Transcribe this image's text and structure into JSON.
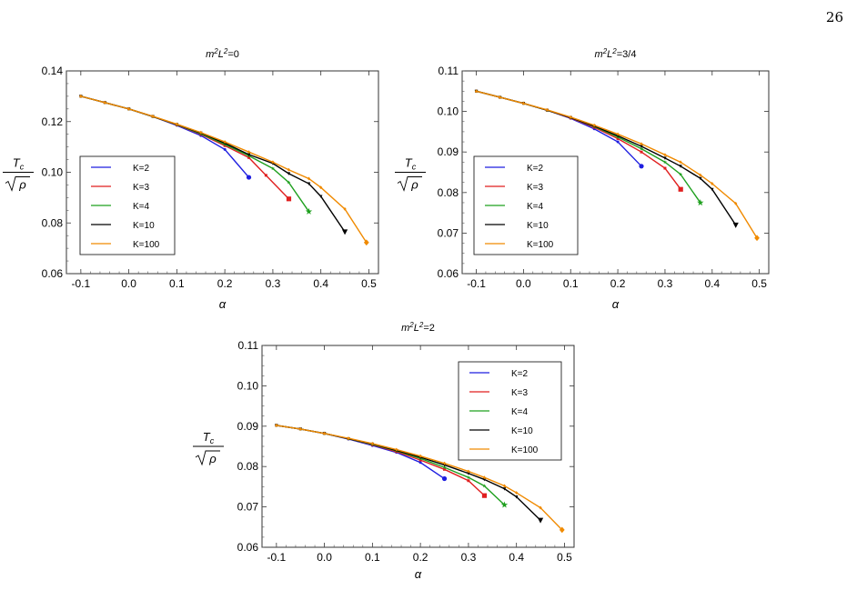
{
  "page": {
    "number": "26"
  },
  "chart_data": [
    {
      "type": "line",
      "title": "m²L²=0",
      "title_parts": {
        "base1": "m",
        "sup1": "2",
        "base2": "L",
        "sup2": "2",
        "rest": "=0"
      },
      "xlabel": "α",
      "ylabel": {
        "top": "T",
        "top_sub": "c",
        "bottom": "ρ"
      },
      "xlim": [
        -0.13,
        0.52
      ],
      "ylim": [
        0.06,
        0.14
      ],
      "xticks": [
        -0.1,
        0.0,
        0.1,
        0.2,
        0.3,
        0.4,
        0.5
      ],
      "xtick_labels": [
        "-0.1",
        "0.0",
        "0.1",
        "0.2",
        "0.3",
        "0.4",
        "0.5"
      ],
      "yticks": [
        0.06,
        0.08,
        0.1,
        0.12,
        0.14
      ],
      "ytick_labels": [
        "0.06",
        "0.08",
        "0.10",
        "0.12",
        "0.14"
      ],
      "legend_position": "middle-left",
      "series": [
        {
          "name": "K=2",
          "color": "#1f1fe0",
          "marker": "circle",
          "x": [
            -0.1,
            -0.05,
            0.0,
            0.05,
            0.1,
            0.15,
            0.2,
            0.25
          ],
          "y": [
            0.13,
            0.1275,
            0.125,
            0.122,
            0.1185,
            0.1145,
            0.109,
            0.098
          ]
        },
        {
          "name": "K=3",
          "color": "#e01f1f",
          "marker": "square",
          "x": [
            -0.1,
            -0.05,
            0.0,
            0.05,
            0.1,
            0.15,
            0.2,
            0.25,
            0.2857,
            0.3333
          ],
          "y": [
            0.13,
            0.1275,
            0.125,
            0.122,
            0.1187,
            0.115,
            0.1105,
            0.1058,
            0.0988,
            0.0895
          ]
        },
        {
          "name": "K=4",
          "color": "#1fa01f",
          "marker": "star",
          "x": [
            -0.1,
            -0.05,
            0.0,
            0.05,
            0.1,
            0.15,
            0.2,
            0.25,
            0.3,
            0.333,
            0.375
          ],
          "y": [
            0.13,
            0.1275,
            0.125,
            0.122,
            0.1188,
            0.1152,
            0.111,
            0.1065,
            0.1015,
            0.096,
            0.0845
          ]
        },
        {
          "name": "K=10",
          "color": "#000000",
          "marker": "triangle-down",
          "x": [
            -0.1,
            -0.05,
            0.0,
            0.05,
            0.1,
            0.15,
            0.2,
            0.25,
            0.3,
            0.333,
            0.375,
            0.4,
            0.45
          ],
          "y": [
            0.13,
            0.1275,
            0.125,
            0.122,
            0.1189,
            0.1155,
            0.1115,
            0.107,
            0.1035,
            0.0995,
            0.0955,
            0.0905,
            0.0765
          ]
        },
        {
          "name": "K=100",
          "color": "#f08a00",
          "marker": "diamond",
          "x": [
            -0.1,
            -0.05,
            0.0,
            0.05,
            0.1,
            0.15,
            0.2,
            0.25,
            0.3,
            0.333,
            0.375,
            0.4,
            0.45,
            0.495
          ],
          "y": [
            0.13,
            0.1275,
            0.125,
            0.1221,
            0.119,
            0.1157,
            0.112,
            0.108,
            0.104,
            0.101,
            0.0975,
            0.094,
            0.0855,
            0.0723
          ]
        }
      ]
    },
    {
      "type": "line",
      "title": "m²L²=3/4",
      "title_parts": {
        "base1": "m",
        "sup1": "2",
        "base2": "L",
        "sup2": "2",
        "rest": "=3/4"
      },
      "xlabel": "α",
      "ylabel": {
        "top": "T",
        "top_sub": "c",
        "bottom": "ρ"
      },
      "xlim": [
        -0.13,
        0.52
      ],
      "ylim": [
        0.06,
        0.11
      ],
      "xticks": [
        -0.1,
        0.0,
        0.1,
        0.2,
        0.3,
        0.4,
        0.5
      ],
      "xtick_labels": [
        "-0.1",
        "0.0",
        "0.1",
        "0.2",
        "0.3",
        "0.4",
        "0.5"
      ],
      "yticks": [
        0.06,
        0.07,
        0.08,
        0.09,
        0.1,
        0.11
      ],
      "ytick_labels": [
        "0.06",
        "0.07",
        "0.08",
        "0.09",
        "0.10",
        "0.11"
      ],
      "legend_position": "middle-left",
      "series": [
        {
          "name": "K=2",
          "color": "#1f1fe0",
          "marker": "circle",
          "x": [
            -0.1,
            -0.05,
            0.0,
            0.05,
            0.1,
            0.15,
            0.2,
            0.25
          ],
          "y": [
            0.105,
            0.1035,
            0.102,
            0.1003,
            0.0983,
            0.0957,
            0.0925,
            0.0865
          ]
        },
        {
          "name": "K=3",
          "color": "#e01f1f",
          "marker": "square",
          "x": [
            -0.1,
            -0.05,
            0.0,
            0.05,
            0.1,
            0.15,
            0.2,
            0.25,
            0.3,
            0.3333
          ],
          "y": [
            0.105,
            0.1035,
            0.102,
            0.1003,
            0.0984,
            0.0961,
            0.0933,
            0.09,
            0.086,
            0.0808
          ]
        },
        {
          "name": "K=4",
          "color": "#1fa01f",
          "marker": "star",
          "x": [
            -0.1,
            -0.05,
            0.0,
            0.05,
            0.1,
            0.15,
            0.2,
            0.25,
            0.3,
            0.333,
            0.375
          ],
          "y": [
            0.105,
            0.1035,
            0.102,
            0.1003,
            0.0985,
            0.0963,
            0.0937,
            0.0908,
            0.0875,
            0.0845,
            0.0775
          ]
        },
        {
          "name": "K=10",
          "color": "#000000",
          "marker": "triangle-down",
          "x": [
            -0.1,
            -0.05,
            0.0,
            0.05,
            0.1,
            0.15,
            0.2,
            0.25,
            0.3,
            0.333,
            0.375,
            0.4,
            0.45
          ],
          "y": [
            0.105,
            0.1035,
            0.102,
            0.1003,
            0.0985,
            0.0964,
            0.094,
            0.0914,
            0.0885,
            0.0865,
            0.0835,
            0.0808,
            0.072
          ]
        },
        {
          "name": "K=100",
          "color": "#f08a00",
          "marker": "diamond",
          "x": [
            -0.1,
            -0.05,
            0.0,
            0.05,
            0.1,
            0.15,
            0.2,
            0.25,
            0.3,
            0.333,
            0.375,
            0.4,
            0.45,
            0.495
          ],
          "y": [
            0.105,
            0.1035,
            0.102,
            0.1004,
            0.0986,
            0.0966,
            0.0944,
            0.092,
            0.0893,
            0.0875,
            0.0843,
            0.0822,
            0.0773,
            0.0688
          ]
        }
      ]
    },
    {
      "type": "line",
      "title": "m²L²=2",
      "title_parts": {
        "base1": "m",
        "sup1": "2",
        "base2": "L",
        "sup2": "2",
        "rest": "=2"
      },
      "xlabel": "α",
      "ylabel": {
        "top": "T",
        "top_sub": "c",
        "bottom": "ρ"
      },
      "xlim": [
        -0.13,
        0.52
      ],
      "ylim": [
        0.06,
        0.11
      ],
      "xticks": [
        -0.1,
        0.0,
        0.1,
        0.2,
        0.3,
        0.4,
        0.5
      ],
      "xtick_labels": [
        "-0.1",
        "0.0",
        "0.1",
        "0.2",
        "0.3",
        "0.4",
        "0.5"
      ],
      "yticks": [
        0.06,
        0.07,
        0.08,
        0.09,
        0.1,
        0.11
      ],
      "ytick_labels": [
        "0.06",
        "0.07",
        "0.08",
        "0.09",
        "0.10",
        "0.11"
      ],
      "legend_position": "top-right",
      "series": [
        {
          "name": "K=2",
          "color": "#1f1fe0",
          "marker": "circle",
          "x": [
            -0.1,
            -0.05,
            0.0,
            0.05,
            0.1,
            0.15,
            0.2,
            0.25
          ],
          "y": [
            0.0902,
            0.0893,
            0.0882,
            0.0868,
            0.0852,
            0.0835,
            0.081,
            0.077
          ]
        },
        {
          "name": "K=3",
          "color": "#e01f1f",
          "marker": "square",
          "x": [
            -0.1,
            -0.05,
            0.0,
            0.05,
            0.1,
            0.15,
            0.2,
            0.25,
            0.3,
            0.3333
          ],
          "y": [
            0.0902,
            0.0893,
            0.0882,
            0.0869,
            0.0854,
            0.0837,
            0.0816,
            0.0793,
            0.0765,
            0.0728
          ]
        },
        {
          "name": "K=4",
          "color": "#1fa01f",
          "marker": "star",
          "x": [
            -0.1,
            -0.05,
            0.0,
            0.05,
            0.1,
            0.15,
            0.2,
            0.25,
            0.3,
            0.333,
            0.375
          ],
          "y": [
            0.0902,
            0.0893,
            0.0882,
            0.0869,
            0.0855,
            0.0839,
            0.082,
            0.0798,
            0.0773,
            0.0752,
            0.0705
          ]
        },
        {
          "name": "K=10",
          "color": "#000000",
          "marker": "triangle-down",
          "x": [
            -0.1,
            -0.05,
            0.0,
            0.05,
            0.1,
            0.15,
            0.2,
            0.25,
            0.3,
            0.333,
            0.375,
            0.4,
            0.45
          ],
          "y": [
            0.0902,
            0.0893,
            0.0882,
            0.0869,
            0.0856,
            0.084,
            0.0823,
            0.0804,
            0.0783,
            0.0768,
            0.0745,
            0.0725,
            0.0667
          ]
        },
        {
          "name": "K=100",
          "color": "#f08a00",
          "marker": "diamond",
          "x": [
            -0.1,
            -0.05,
            0.0,
            0.05,
            0.1,
            0.15,
            0.2,
            0.25,
            0.3,
            0.333,
            0.375,
            0.4,
            0.45,
            0.495
          ],
          "y": [
            0.0902,
            0.0893,
            0.0882,
            0.087,
            0.0857,
            0.0842,
            0.0826,
            0.0808,
            0.0788,
            0.0773,
            0.0752,
            0.0735,
            0.0698,
            0.0643
          ]
        }
      ]
    }
  ]
}
